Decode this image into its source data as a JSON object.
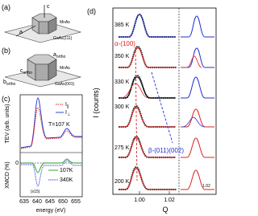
{
  "panel_a": {
    "label": "(a)",
    "axis_c": "c",
    "axis_a": "a",
    "film": "MnAs",
    "substrate": "GaAs(111)"
  },
  "panel_b": {
    "label": "(b)",
    "c_ortho": {
      "symbol": "c",
      "sub": "ortho"
    },
    "a_ortho": {
      "symbol": "a",
      "sub": "ortho"
    },
    "b_ortho": {
      "symbol": "b",
      "sub": "ortho"
    },
    "film": "MnAs",
    "substrate": "GaAs(001)"
  },
  "panel_c": {
    "label": "(c)",
    "y_label_top": "TEV (arb. units)",
    "y_label_bottom": "XMCD (%)",
    "legend": [
      {
        "symbol": "I",
        "sub": "∥"
      },
      {
        "symbol": "I",
        "sub": "⊥"
      }
    ],
    "temperature": "T=107 K",
    "curve_107": "107K",
    "curve_340": "340K",
    "scale": "(x15)",
    "ytick_bottom": "0",
    "xticks": [
      "635",
      "640",
      "645",
      "650",
      "655"
    ],
    "x_label": "energy (eV)"
  },
  "panel_d": {
    "label": "(d)",
    "y_label": "I (counts)",
    "x_label": "Q",
    "temperatures": [
      "385 K",
      "350 K",
      "330 K",
      "300 K",
      "275 K",
      "200 K"
    ],
    "alpha": "α-(100)",
    "beta": "β-(011)(002)",
    "xticks": [
      "1.00",
      "1.02"
    ],
    "inset_xtick": "1.02"
  }
}
